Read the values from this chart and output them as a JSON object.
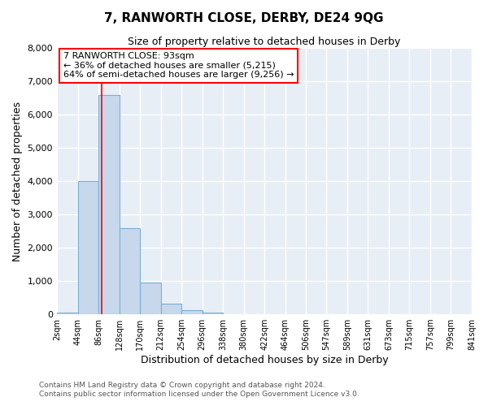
{
  "title": "7, RANWORTH CLOSE, DERBY, DE24 9QG",
  "subtitle": "Size of property relative to detached houses in Derby",
  "xlabel": "Distribution of detached houses by size in Derby",
  "ylabel": "Number of detached properties",
  "bin_edges": [
    2,
    44,
    86,
    128,
    170,
    212,
    254,
    296,
    338,
    380,
    422,
    464,
    506,
    547,
    589,
    631,
    673,
    715,
    757,
    799,
    841
  ],
  "counts": [
    50,
    4000,
    6600,
    2600,
    950,
    320,
    130,
    50,
    0,
    0,
    0,
    0,
    0,
    0,
    0,
    0,
    0,
    0,
    0,
    0
  ],
  "bar_color": "#c8d8ec",
  "bar_edge_color": "#7aafd4",
  "property_line_x": 93,
  "property_line_color": "red",
  "annotation_title": "7 RANWORTH CLOSE: 93sqm",
  "annotation_line1": "← 36% of detached houses are smaller (5,215)",
  "annotation_line2": "64% of semi-detached houses are larger (9,256) →",
  "annotation_box_color": "white",
  "annotation_box_edge_color": "red",
  "ylim": [
    0,
    8000
  ],
  "yticks": [
    0,
    1000,
    2000,
    3000,
    4000,
    5000,
    6000,
    7000,
    8000
  ],
  "tick_labels": [
    "2sqm",
    "44sqm",
    "86sqm",
    "128sqm",
    "170sqm",
    "212sqm",
    "254sqm",
    "296sqm",
    "338sqm",
    "380sqm",
    "422sqm",
    "464sqm",
    "506sqm",
    "547sqm",
    "589sqm",
    "631sqm",
    "673sqm",
    "715sqm",
    "757sqm",
    "799sqm",
    "841sqm"
  ],
  "footer_line1": "Contains HM Land Registry data © Crown copyright and database right 2024.",
  "footer_line2": "Contains public sector information licensed under the Open Government Licence v3.0.",
  "bg_color": "#ffffff",
  "plot_bg_color": "#e8eef5",
  "grid_color": "#ffffff"
}
